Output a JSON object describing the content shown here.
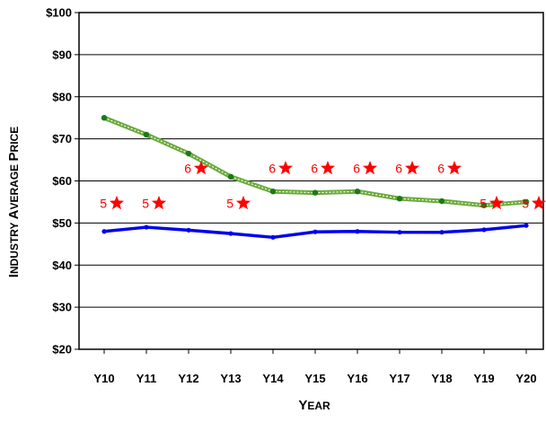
{
  "chart_data": {
    "type": "line",
    "title": "",
    "xlabel": {
      "cap1": "Y",
      "rest1": "EAR"
    },
    "ylabel": {
      "cap1": "I",
      "rest1": "NDUSTRY ",
      "cap2": "A",
      "rest2": "VERAGE ",
      "cap3": "P",
      "rest3": "RICE"
    },
    "categories": [
      "Y10",
      "Y11",
      "Y12",
      "Y13",
      "Y14",
      "Y15",
      "Y16",
      "Y17",
      "Y18",
      "Y19",
      "Y20"
    ],
    "ylim": [
      20,
      100
    ],
    "yticks": [
      20,
      30,
      40,
      50,
      60,
      70,
      80,
      90,
      100
    ],
    "ytick_labels": [
      "$20",
      "$30",
      "$40",
      "$50",
      "$60",
      "$70",
      "$80",
      "$90",
      "$100"
    ],
    "grid": true,
    "series": [
      {
        "color": "#6aaa3a",
        "marker_color": "#1a7a1a",
        "values": [
          75,
          71,
          66.5,
          61,
          57.5,
          57.2,
          57.5,
          55.8,
          55.2,
          54.2,
          55
        ]
      },
      {
        "color": "#0000ee",
        "values": [
          48,
          49,
          48.3,
          47.5,
          46.6,
          47.9,
          48,
          47.8,
          47.8,
          48.4,
          49.4
        ]
      }
    ],
    "annotations": [
      {
        "x_index": 0,
        "y": 54.7,
        "label": "5"
      },
      {
        "x_index": 1,
        "y": 54.7,
        "label": "5"
      },
      {
        "x_index": 2,
        "y": 63,
        "label": "6"
      },
      {
        "x_index": 3,
        "y": 54.7,
        "label": "5"
      },
      {
        "x_index": 4,
        "y": 63,
        "label": "6"
      },
      {
        "x_index": 5,
        "y": 63,
        "label": "6"
      },
      {
        "x_index": 6,
        "y": 63,
        "label": "6"
      },
      {
        "x_index": 7,
        "y": 63,
        "label": "6"
      },
      {
        "x_index": 8,
        "y": 63,
        "label": "6"
      },
      {
        "x_index": 9,
        "y": 54.7,
        "label": "5"
      },
      {
        "x_index": 10,
        "y": 54.7,
        "label": "5"
      }
    ],
    "annotation_color": "#ff0000"
  }
}
